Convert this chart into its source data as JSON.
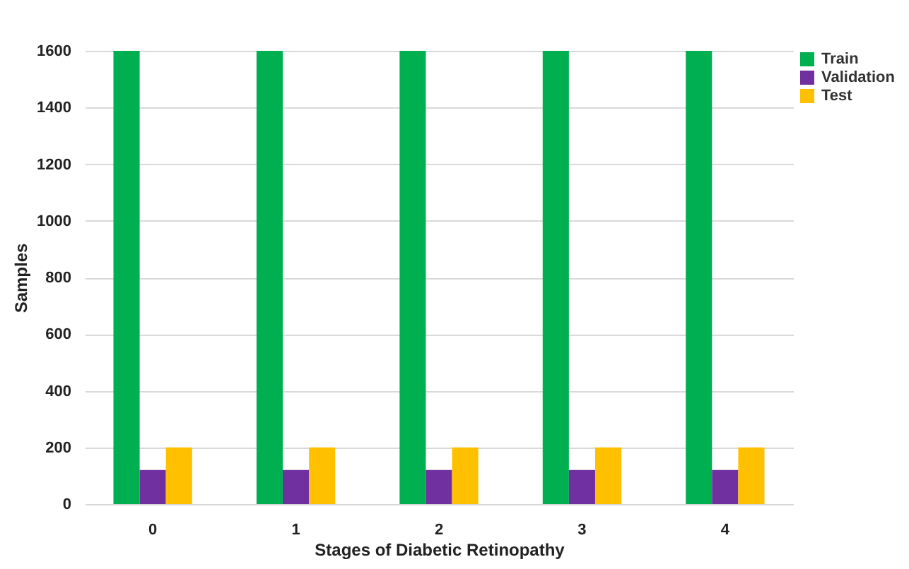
{
  "chart_data": {
    "type": "bar",
    "xlabel": "Stages of Diabetic Retinopathy",
    "ylabel": "Samples",
    "categories": [
      "0",
      "1",
      "2",
      "3",
      "4"
    ],
    "series": [
      {
        "name": "Train",
        "color": "#00b050",
        "values": [
          1600,
          1600,
          1600,
          1600,
          1600
        ]
      },
      {
        "name": "Validation",
        "color": "#7030a0",
        "values": [
          120,
          120,
          120,
          120,
          120
        ]
      },
      {
        "name": "Test",
        "color": "#ffc000",
        "values": [
          200,
          200,
          200,
          200,
          200
        ]
      }
    ],
    "ylim": [
      0,
      1600
    ],
    "yticks": [
      0,
      200,
      400,
      600,
      800,
      1000,
      1200,
      1400,
      1600
    ],
    "grid": "y",
    "legend": "top right"
  }
}
